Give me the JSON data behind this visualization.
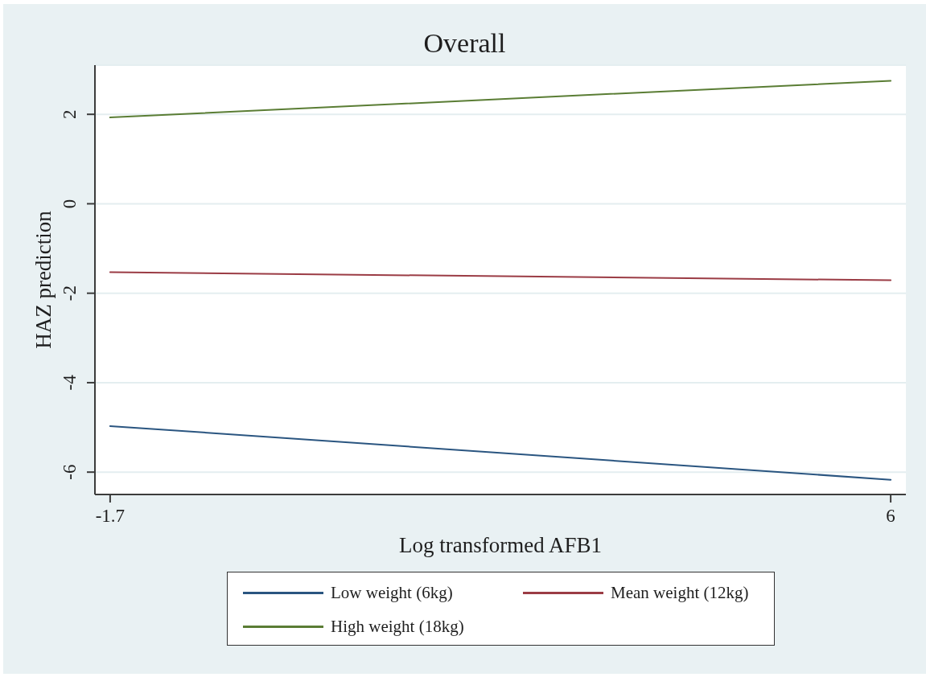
{
  "chart_data": {
    "type": "line",
    "title": "Overall",
    "xlabel": "Log transformed AFB1",
    "ylabel": "HAZ prediction",
    "x": [
      -1.7,
      6
    ],
    "series": [
      {
        "name": "Low weight (6kg)",
        "color": "#2a5580",
        "values": [
          -4.97,
          -6.17
        ]
      },
      {
        "name": "Mean weight (12kg)",
        "color": "#9b3c45",
        "values": [
          -1.53,
          -1.71
        ]
      },
      {
        "name": "High weight (18kg)",
        "color": "#5a7d34",
        "values": [
          1.93,
          2.75
        ]
      }
    ],
    "xlim": [
      -1.85,
      6.15
    ],
    "ylim": [
      -6.5,
      3.1
    ],
    "xticks": [
      -1.7,
      6
    ],
    "yticks": [
      -6,
      -4,
      -2,
      0,
      2
    ],
    "grid": "y",
    "legend": "bottom",
    "line_style": "solid"
  }
}
